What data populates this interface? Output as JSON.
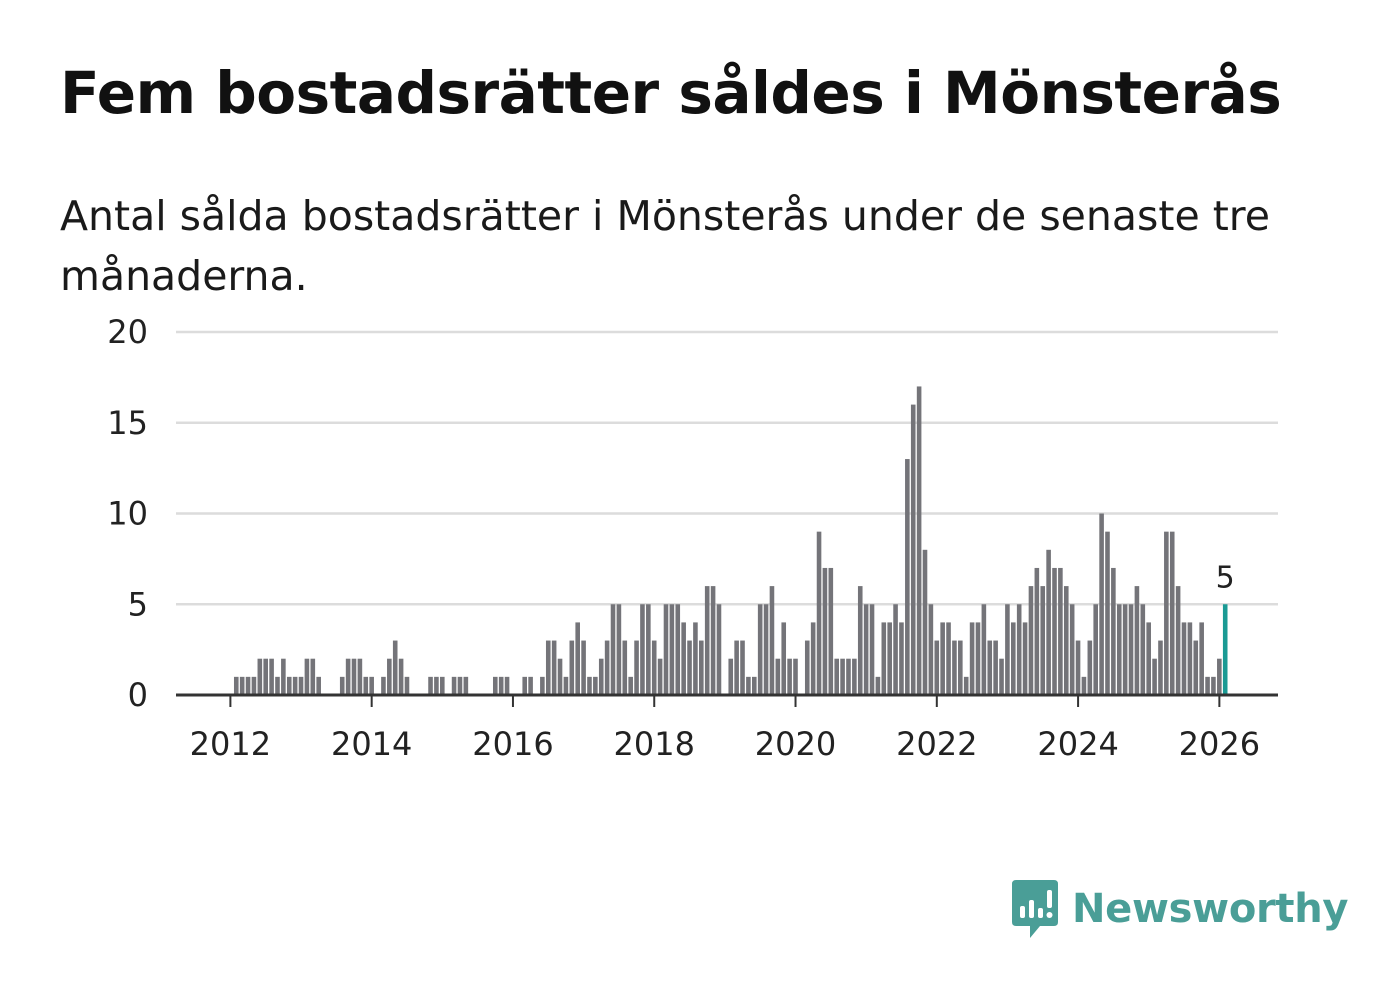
{
  "title": "Fem bostadsrätter såldes i Mönsterås",
  "subtitle": "Antal sålda bostadsrätter i Mönsterås under de senaste tre månaderna.",
  "brand": {
    "name": "Newsworthy",
    "icon": "newsworthy-logo-icon",
    "color": "#4a9e97"
  },
  "colors": {
    "bar": "#747479",
    "highlight": "#1a9a94",
    "grid": "#dcdcdc",
    "axis": "#333333",
    "text": "#222222"
  },
  "chart_data": {
    "type": "bar",
    "title": "Fem bostadsrätter såldes i Mönsterås",
    "subtitle": "Antal sålda bostadsrätter i Mönsterås under de senaste tre månaderna.",
    "xlabel": "",
    "ylabel": "",
    "x_start": 2011.25,
    "x_step": 0.08333,
    "xlim": [
      2011.23,
      2026.83
    ],
    "ylim": [
      0,
      20
    ],
    "yticks": [
      0,
      5,
      10,
      15,
      20
    ],
    "xticks": [
      2012,
      2014,
      2016,
      2018,
      2020,
      2022,
      2024,
      2026
    ],
    "grid": true,
    "values": [
      0,
      0,
      0,
      0,
      0,
      0,
      0,
      0,
      0,
      0,
      1,
      1,
      1,
      1,
      2,
      2,
      2,
      1,
      2,
      1,
      1,
      1,
      2,
      2,
      1,
      0,
      0,
      0,
      1,
      2,
      2,
      2,
      1,
      1,
      0,
      1,
      2,
      3,
      2,
      1,
      0,
      0,
      0,
      1,
      1,
      1,
      0,
      1,
      1,
      1,
      0,
      0,
      0,
      0,
      1,
      1,
      1,
      0,
      0,
      1,
      1,
      0,
      1,
      3,
      3,
      2,
      1,
      3,
      4,
      3,
      1,
      1,
      2,
      3,
      5,
      5,
      3,
      1,
      3,
      5,
      5,
      3,
      2,
      5,
      5,
      5,
      4,
      3,
      4,
      3,
      6,
      6,
      5,
      0,
      2,
      3,
      3,
      1,
      1,
      5,
      5,
      6,
      2,
      4,
      2,
      2,
      0,
      3,
      4,
      9,
      7,
      7,
      2,
      2,
      2,
      2,
      6,
      5,
      5,
      1,
      4,
      4,
      5,
      4,
      13,
      16,
      17,
      8,
      5,
      3,
      4,
      4,
      3,
      3,
      1,
      4,
      4,
      5,
      3,
      3,
      2,
      5,
      4,
      5,
      4,
      6,
      7,
      6,
      8,
      7,
      7,
      6,
      5,
      3,
      1,
      3,
      5,
      10,
      9,
      7,
      5,
      5,
      5,
      6,
      5,
      4,
      2,
      3,
      9,
      9,
      6,
      4,
      4,
      3,
      4,
      1,
      1,
      2,
      5
    ],
    "highlight": {
      "index": 178,
      "label": "5"
    }
  }
}
